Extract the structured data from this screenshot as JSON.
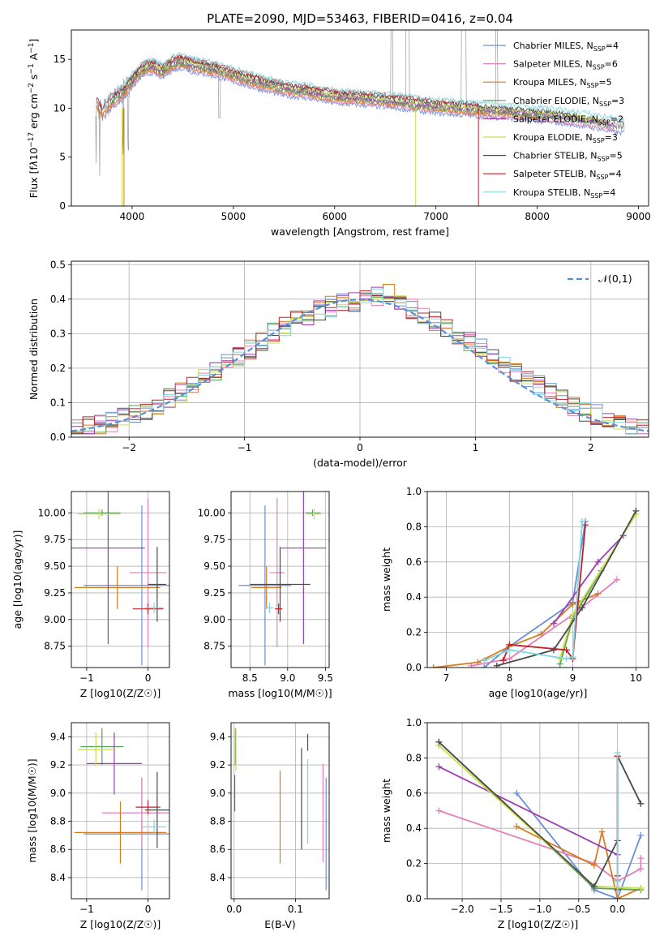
{
  "figure": {
    "suptitle": "PLATE=2090, MJD=53463, FIBERID=0416, z=0.04"
  },
  "colors": {
    "Chabrier MILES": "#6a8fd8",
    "Salpeter MILES": "#e57fb8",
    "Kroupa MILES": "#d97a1e",
    "Chabrier ELODIE": "#5aa05a",
    "Salpeter ELODIE": "#9b3fb0",
    "Kroupa ELODIE": "#c8e04a",
    "Chabrier STELIB": "#4a4a4a",
    "Salpeter STELIB": "#c0202a",
    "Kroupa STELIB": "#7fd6dc",
    "data": "#888888"
  },
  "chart_data": [
    {
      "id": "spectrum",
      "type": "line",
      "title": "PLATE=2090, MJD=53463, FIBERID=0416, z=0.04",
      "xlabel": "wavelength [Angstrom, rest frame]",
      "ylabel": "Flux [f_λ10^-17 erg cm^-2 s^-1 A^-1]",
      "xlim": [
        3400,
        9100
      ],
      "ylim": [
        0,
        18
      ],
      "xticks": [
        "4000",
        "5000",
        "6000",
        "7000",
        "8000",
        "9000"
      ],
      "yticks": [
        "0",
        "5",
        "10",
        "15"
      ],
      "legend_position": "top-right",
      "legend": [
        {
          "label": "Chabrier MILES, N_SSP=4",
          "pre": "Chabrier MILES, N",
          "sub": "SSP",
          "post": "=4"
        },
        {
          "label": "Salpeter MILES, N_SSP=6",
          "pre": "Salpeter MILES, N",
          "sub": "SSP",
          "post": "=6"
        },
        {
          "label": "Kroupa MILES, N_SSP=5",
          "pre": "Kroupa MILES, N",
          "sub": "SSP",
          "post": "=5"
        },
        {
          "label": "Chabrier ELODIE, N_SSP=3",
          "pre": "Chabrier ELODIE, N",
          "sub": "SSP",
          "post": "=3"
        },
        {
          "label": "Salpeter ELODIE, N_SSP=2",
          "pre": "Salpeter ELODIE, N",
          "sub": "SSP",
          "post": "=2"
        },
        {
          "label": "Kroupa ELODIE, N_SSP=3",
          "pre": "Kroupa ELODIE, N",
          "sub": "SSP",
          "post": "=3"
        },
        {
          "label": "Chabrier STELIB, N_SSP=5",
          "pre": "Chabrier STELIB, N",
          "sub": "SSP",
          "post": "=5"
        },
        {
          "label": "Salpeter STELIB, N_SSP=4",
          "pre": "Salpeter STELIB, N",
          "sub": "SSP",
          "post": "=4"
        },
        {
          "label": "Kroupa STELIB, N_SSP=4",
          "pre": "Kroupa STELIB, N",
          "sub": "SSP",
          "post": "=4"
        }
      ],
      "data_trend": {
        "x": [
          3650,
          3700,
          3800,
          3900,
          4000,
          4100,
          4200,
          4300,
          4400,
          4500,
          4600,
          4800,
          5000,
          5200,
          5500,
          5800,
          6000,
          6300,
          6600,
          7000,
          7400,
          7800,
          8200,
          8500,
          8800
        ],
        "y": [
          10.5,
          9.5,
          10.8,
          11.5,
          12.8,
          14.0,
          14.3,
          13.8,
          14.6,
          14.8,
          14.4,
          14.0,
          13.4,
          12.8,
          12.0,
          11.6,
          11.2,
          11.0,
          10.7,
          10.2,
          9.9,
          9.6,
          9.2,
          8.8,
          8.2
        ]
      },
      "model_dropouts_x": [
        3900,
        3920,
        6800,
        7420
      ]
    },
    {
      "id": "residuals",
      "type": "line",
      "xlabel": "(data-model)/error",
      "ylabel": "Normed distribution",
      "xlim": [
        -2.5,
        2.5
      ],
      "ylim": [
        0,
        0.51
      ],
      "xticks": [
        "−2",
        "−1",
        "0",
        "1",
        "2"
      ],
      "yticks": [
        "0.0",
        "0.1",
        "0.2",
        "0.3",
        "0.4",
        "0.5"
      ],
      "legend_label": "𝒩(0,1)",
      "legend_position": "top-right",
      "reference_curve": "standard normal pdf",
      "hist_bin_width": 0.1,
      "hist_base": [
        0.03,
        0.035,
        0.04,
        0.05,
        0.06,
        0.07,
        0.085,
        0.1,
        0.12,
        0.14,
        0.16,
        0.18,
        0.2,
        0.22,
        0.24,
        0.26,
        0.28,
        0.3,
        0.32,
        0.34,
        0.35,
        0.36,
        0.37,
        0.38,
        0.39,
        0.4,
        0.42,
        0.44,
        0.42,
        0.38,
        0.36,
        0.35,
        0.34,
        0.32,
        0.3,
        0.28,
        0.26,
        0.24,
        0.22,
        0.2,
        0.18,
        0.15,
        0.13,
        0.11,
        0.09,
        0.08,
        0.06,
        0.05,
        0.04,
        0.035
      ]
    },
    {
      "id": "age-vs-Z",
      "type": "scatter",
      "xlabel": "Z [log10(Z/Z☉)]",
      "ylabel": "age [log10(age/yr)]",
      "xlim": [
        -1.25,
        0.35
      ],
      "ylim": [
        8.55,
        10.2
      ],
      "xticks": [
        "−1",
        "0"
      ],
      "yticks": [
        "8.75",
        "9.00",
        "9.25",
        "9.50",
        "9.75",
        "10.00"
      ],
      "points": [
        {
          "model": "Chabrier MILES",
          "x": -0.1,
          "y": 9.32,
          "xerr": 0.95,
          "yerr": 0.75
        },
        {
          "model": "Salpeter MILES",
          "x": 0.0,
          "y": 9.44,
          "xerr": 0.3,
          "yerr": 0.7
        },
        {
          "model": "Kroupa MILES",
          "x": -0.5,
          "y": 9.3,
          "xerr": 0.7,
          "yerr": 0.2
        },
        {
          "model": "Chabrier ELODIE",
          "x": -0.75,
          "y": 10.0,
          "xerr": 0.3,
          "yerr": 0.03
        },
        {
          "model": "Salpeter ELODIE",
          "x": -0.65,
          "y": 9.67,
          "xerr": 0.6,
          "yerr": 0.9
        },
        {
          "model": "Kroupa ELODIE",
          "x": -0.8,
          "y": 9.99,
          "xerr": 0.35,
          "yerr": 0.05
        },
        {
          "model": "Chabrier STELIB",
          "x": 0.15,
          "y": 9.33,
          "xerr": 0.15,
          "yerr": 0.35
        },
        {
          "model": "Salpeter STELIB",
          "x": 0.0,
          "y": 9.1,
          "xerr": 0.25,
          "yerr": 0.05
        },
        {
          "model": "Kroupa STELIB",
          "x": 0.1,
          "y": 9.11,
          "xerr": 0.15,
          "yerr": 0.05
        }
      ]
    },
    {
      "id": "age-vs-mass",
      "type": "scatter",
      "xlabel": "mass [log10(M/M☉)]",
      "xlim": [
        8.25,
        9.55
      ],
      "ylim": [
        8.55,
        10.2
      ],
      "xticks": [
        "8.5",
        "9.0",
        "9.5"
      ],
      "yticks": [
        "8.75",
        "9.00",
        "9.25",
        "9.50",
        "9.75",
        "10.00"
      ],
      "points": [
        {
          "model": "Chabrier MILES",
          "x": 8.7,
          "y": 9.32,
          "xerr": 0.35,
          "yerr": 0.75
        },
        {
          "model": "Salpeter MILES",
          "x": 8.86,
          "y": 9.44,
          "xerr": 0.1,
          "yerr": 0.7
        },
        {
          "model": "Kroupa MILES",
          "x": 8.72,
          "y": 9.3,
          "xerr": 0.2,
          "yerr": 0.2
        },
        {
          "model": "Chabrier ELODIE",
          "x": 9.33,
          "y": 10.0,
          "xerr": 0.1,
          "yerr": 0.03
        },
        {
          "model": "Salpeter ELODIE",
          "x": 9.21,
          "y": 9.67,
          "xerr": 0.3,
          "yerr": 0.9
        },
        {
          "model": "Kroupa ELODIE",
          "x": 9.35,
          "y": 9.99,
          "xerr": 0.1,
          "yerr": 0.05
        },
        {
          "model": "Chabrier STELIB",
          "x": 8.9,
          "y": 9.33,
          "xerr": 0.4,
          "yerr": 0.35
        },
        {
          "model": "Salpeter STELIB",
          "x": 8.88,
          "y": 9.1,
          "xerr": 0.05,
          "yerr": 0.05
        },
        {
          "model": "Kroupa STELIB",
          "x": 8.76,
          "y": 9.11,
          "xerr": 0.05,
          "yerr": 0.05
        }
      ]
    },
    {
      "id": "massweight-vs-age",
      "type": "line",
      "xlabel": "age [log10(age/yr)]",
      "ylabel": "mass weight",
      "xlim": [
        6.7,
        10.2
      ],
      "ylim": [
        0,
        1.0
      ],
      "xticks": [
        "7",
        "8",
        "9",
        "10"
      ],
      "yticks": [
        "0.0",
        "0.2",
        "0.4",
        "0.6",
        "0.8",
        "1.0"
      ],
      "series": [
        {
          "model": "Chabrier MILES",
          "x": [
            7.6,
            8.0,
            9.0,
            9.2
          ],
          "y": [
            0.0,
            0.12,
            0.37,
            0.83
          ]
        },
        {
          "model": "Salpeter MILES",
          "x": [
            7.4,
            8.0,
            9.0,
            9.7
          ],
          "y": [
            0.01,
            0.05,
            0.3,
            0.5
          ]
        },
        {
          "model": "Kroupa MILES",
          "x": [
            6.8,
            7.5,
            8.0,
            8.5,
            9.0,
            9.4
          ],
          "y": [
            0.0,
            0.03,
            0.12,
            0.19,
            0.36,
            0.42
          ]
        },
        {
          "model": "Chabrier ELODIE",
          "x": [
            8.8,
            9.0,
            9.45
          ],
          "y": [
            0.02,
            0.28,
            0.55
          ]
        },
        {
          "model": "Salpeter ELODIE",
          "x": [
            8.7,
            9.4,
            9.8
          ],
          "y": [
            0.25,
            0.6,
            0.75
          ]
        },
        {
          "model": "Kroupa ELODIE",
          "x": [
            8.8,
            9.0,
            10.0
          ],
          "y": [
            0.05,
            0.3,
            0.87
          ]
        },
        {
          "model": "Chabrier STELIB",
          "x": [
            7.8,
            8.7,
            9.15,
            10.0
          ],
          "y": [
            0.01,
            0.1,
            0.34,
            0.89
          ]
        },
        {
          "model": "Salpeter STELIB",
          "x": [
            7.9,
            8.0,
            8.9,
            9.0,
            9.2
          ],
          "y": [
            0.04,
            0.13,
            0.1,
            0.05,
            0.81
          ]
        },
        {
          "model": "Kroupa STELIB",
          "x": [
            7.6,
            8.0,
            8.9,
            9.0,
            9.15
          ],
          "y": [
            0.04,
            0.1,
            0.05,
            0.06,
            0.83
          ]
        }
      ]
    },
    {
      "id": "mass-vs-Z",
      "type": "scatter",
      "xlabel": "Z [log10(Z/Z☉)]",
      "ylabel": "mass [log10(M/M☉)]",
      "xlim": [
        -1.25,
        0.35
      ],
      "ylim": [
        8.25,
        9.5
      ],
      "xticks": [
        "−1",
        "0"
      ],
      "yticks": [
        "8.4",
        "8.6",
        "8.8",
        "9.0",
        "9.2",
        "9.4"
      ],
      "points": [
        {
          "model": "Chabrier MILES",
          "x": -0.1,
          "y": 8.71,
          "xerr": 0.95,
          "yerr": 0.4
        },
        {
          "model": "Salpeter MILES",
          "x": -0.1,
          "y": 8.86,
          "xerr": 0.65,
          "yerr": 0.25
        },
        {
          "model": "Kroupa MILES",
          "x": -0.45,
          "y": 8.72,
          "xerr": 0.75,
          "yerr": 0.22
        },
        {
          "model": "Chabrier ELODIE",
          "x": -0.75,
          "y": 9.33,
          "xerr": 0.35,
          "yerr": 0.13
        },
        {
          "model": "Salpeter ELODIE",
          "x": -0.55,
          "y": 9.21,
          "xerr": 0.45,
          "yerr": 0.22
        },
        {
          "model": "Kroupa ELODIE",
          "x": -0.85,
          "y": 9.31,
          "xerr": 0.3,
          "yerr": 0.12
        },
        {
          "model": "Chabrier STELIB",
          "x": 0.15,
          "y": 8.88,
          "xerr": 0.2,
          "yerr": 0.27
        },
        {
          "model": "Salpeter STELIB",
          "x": 0.0,
          "y": 8.9,
          "xerr": 0.2,
          "yerr": 0.05
        },
        {
          "model": "Kroupa STELIB",
          "x": 0.1,
          "y": 8.76,
          "xerr": 0.2,
          "yerr": 0.05
        }
      ]
    },
    {
      "id": "mass-vs-ebv",
      "type": "scatter",
      "xlabel": "E(B-V)",
      "xlim": [
        -0.005,
        0.155
      ],
      "ylim": [
        8.25,
        9.5
      ],
      "xticks": [
        "0.0",
        "0.1"
      ],
      "yticks": [
        "8.4",
        "8.6",
        "8.8",
        "9.0",
        "9.2",
        "9.4"
      ],
      "points": [
        {
          "model": "Chabrier MILES",
          "x": 0.15,
          "y": 8.71,
          "yerr": 0.4
        },
        {
          "model": "Salpeter MILES",
          "x": 0.145,
          "y": 8.86,
          "yerr": 0.35
        },
        {
          "model": "Kroupa MILES",
          "x": 0.075,
          "y": 8.83,
          "yerr": 0.33
        },
        {
          "model": "Chabrier ELODIE",
          "x": 0.002,
          "y": 9.33,
          "yerr": 0.13
        },
        {
          "model": "Salpeter ELODIE",
          "x": 0.001,
          "y": 9.0,
          "yerr": 0.13
        },
        {
          "model": "Kroupa ELODIE",
          "x": 0.003,
          "y": 9.31,
          "yerr": 0.15
        },
        {
          "model": "Chabrier STELIB",
          "x": 0.11,
          "y": 8.96,
          "yerr": 0.36
        },
        {
          "model": "Salpeter STELIB",
          "x": 0.12,
          "y": 9.36,
          "yerr": 0.06
        },
        {
          "model": "Kroupa STELIB",
          "x": 0.12,
          "y": 8.94,
          "yerr": 0.3
        }
      ]
    },
    {
      "id": "massweight-vs-Z",
      "type": "line",
      "xlabel": "Z [log10(Z/Z☉)]",
      "ylabel": "mass weight",
      "xlim": [
        -2.45,
        0.4
      ],
      "ylim": [
        0,
        1.0
      ],
      "xticks": [
        "−2.0",
        "−1.5",
        "−1.0",
        "−0.5",
        "0.0"
      ],
      "yticks": [
        "0.0",
        "0.2",
        "0.4",
        "0.6",
        "0.8",
        "1.0"
      ],
      "series": [
        {
          "model": "Chabrier MILES",
          "x": [
            -1.3,
            -0.3,
            0.0,
            0.3
          ],
          "y": [
            0.6,
            0.05,
            0.0,
            0.36
          ]
        },
        {
          "model": "Salpeter MILES",
          "x": [
            -2.3,
            -0.3,
            0.0,
            0.3,
            0.3
          ],
          "y": [
            0.5,
            0.2,
            0.1,
            0.17,
            0.23
          ]
        },
        {
          "model": "Kroupa MILES",
          "x": [
            -1.3,
            -0.3,
            -0.2,
            0.0,
            0.3
          ],
          "y": [
            0.41,
            0.19,
            0.38,
            0.0,
            0.06
          ]
        },
        {
          "model": "Chabrier ELODIE",
          "x": [
            -2.3,
            -0.3,
            0.3
          ],
          "y": [
            0.89,
            0.06,
            0.05
          ]
        },
        {
          "model": "Salpeter ELODIE",
          "x": [
            -2.3,
            0.0
          ],
          "y": [
            0.75,
            0.25
          ]
        },
        {
          "model": "Kroupa ELODIE",
          "x": [
            -2.3,
            -0.3,
            0.3
          ],
          "y": [
            0.87,
            0.07,
            0.06
          ]
        },
        {
          "model": "Chabrier STELIB",
          "x": [
            -2.3,
            -0.3,
            0.0,
            0.0,
            0.3
          ],
          "y": [
            0.89,
            0.07,
            0.33,
            0.81,
            0.54
          ]
        },
        {
          "model": "Salpeter STELIB",
          "x": [
            0.0,
            0.0,
            0.0
          ],
          "y": [
            0.05,
            0.13,
            0.81
          ]
        },
        {
          "model": "Kroupa STELIB",
          "x": [
            0.0,
            0.0,
            0.0
          ],
          "y": [
            0.04,
            0.1,
            0.83
          ]
        }
      ]
    }
  ]
}
